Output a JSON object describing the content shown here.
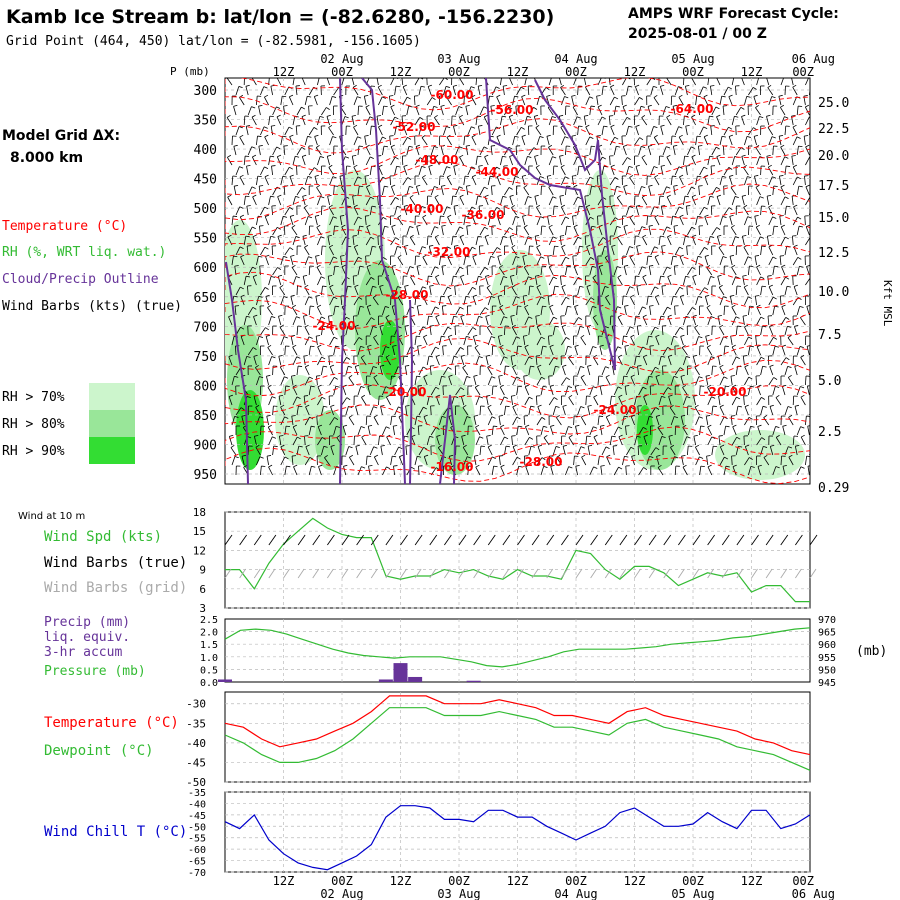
{
  "header": {
    "title": "Kamb Ice Stream b:  lat/lon = (-82.6280, -156.2230)",
    "subtitle": "Grid Point (464, 450) lat/lon = (-82.5981, -156.1605)",
    "cycle_label": "AMPS WRF Forecast Cycle:",
    "cycle_value": "2025-08-01 / 00  Z"
  },
  "legend": {
    "grid_title": "Model Grid ΔX:",
    "grid_value": "8.000 km",
    "temperature": "Temperature (°C)",
    "rh": "RH (%, WRT liq. wat.)",
    "cloud": "Cloud/Precip Outline",
    "barbs": "Wind Barbs (kts) (true)",
    "rh70": "RH > 70%",
    "rh80": "RH > 80%",
    "rh90": "RH > 90%"
  },
  "colors": {
    "temperature": "#ff0000",
    "rh": "#33bb33",
    "cloud": "#663399",
    "rh70": "#ccf5cc",
    "rh80": "#99e699",
    "rh90": "#33dd33",
    "wind_chill": "#0000cc",
    "grid_barbs": "#aaaaaa"
  },
  "time_axis": {
    "top_dates": [
      "02 Aug",
      "03 Aug",
      "04 Aug",
      "05 Aug",
      "06 Aug"
    ],
    "hour_labels": [
      "12Z",
      "00Z",
      "12Z",
      "00Z",
      "12Z",
      "00Z",
      "12Z",
      "00Z",
      "12Z",
      "00Z"
    ],
    "bottom_dates": [
      "02 Aug",
      "03 Aug",
      "04 Aug",
      "05 Aug",
      "06 Aug"
    ]
  },
  "chart_data": [
    {
      "type": "heatmap",
      "title": "Time-height cross section",
      "ylabel": "P (mb)",
      "ylabel_right": "Kft MSL",
      "pressure_levels": [
        300,
        350,
        400,
        450,
        500,
        550,
        600,
        650,
        700,
        750,
        800,
        850,
        900,
        950
      ],
      "height_levels": [
        "25.0",
        "22.5",
        "20.0",
        "17.5",
        "15.0",
        "12.5",
        "10.0",
        "7.5",
        "5.0",
        "2.5",
        "0.29"
      ],
      "temperature_labels": [
        "-60.00",
        "-56.00",
        "-64.00",
        "-52.00",
        "-48.00",
        "-44.00",
        "-40.00",
        "-36.00",
        "-32.00",
        "-28.00",
        "-24.00",
        "-20.00",
        "-24.00",
        "-20.00",
        "-16.00",
        "-28.00"
      ]
    },
    {
      "type": "line",
      "title": "Wind at 10 m",
      "series_labels": [
        "Wind Spd (kts)",
        "Wind Barbs (true)",
        "Wind Barbs (grid)"
      ],
      "yticks": [
        18,
        15,
        12,
        9,
        6,
        3
      ],
      "ylim": [
        3,
        18
      ],
      "x_hours": [
        0,
        3,
        6,
        9,
        12,
        15,
        18,
        21,
        24,
        27,
        30,
        33,
        36,
        39,
        42,
        45,
        48,
        51,
        54,
        57,
        60,
        63,
        66,
        69,
        72,
        75,
        78,
        81,
        84,
        87,
        90,
        93,
        96,
        99,
        102,
        105,
        108,
        111,
        114,
        117,
        120
      ],
      "wind_speed": [
        9,
        9,
        6,
        10,
        13,
        15,
        17,
        15.5,
        14.5,
        14,
        14,
        8,
        7.5,
        8,
        8,
        9,
        8.5,
        9,
        8,
        7.5,
        9,
        8,
        8,
        7.5,
        12,
        11.5,
        9,
        7.5,
        9.5,
        9.5,
        8.5,
        6.5,
        7.5,
        8.5,
        8,
        8.5,
        5.5,
        6.5,
        6.5,
        4,
        4
      ]
    },
    {
      "type": "line",
      "series_labels": [
        "Precip (mm)",
        "liq. equiv.",
        "3-hr accum",
        "Pressure (mb)"
      ],
      "ylabel_right": "(mb)",
      "yticks_left": [
        "2.5",
        "2.0",
        "1.5",
        "1.0",
        "0.5",
        "0.0"
      ],
      "yticks_right": [
        970,
        965,
        960,
        955,
        950,
        945
      ],
      "pressure": [
        962,
        965.5,
        966,
        965.5,
        964,
        962,
        960,
        958,
        956.5,
        955.5,
        955,
        954.5,
        955,
        955,
        955,
        954,
        953,
        951.5,
        951,
        952,
        953.5,
        955,
        957,
        958,
        958,
        958,
        958,
        958.5,
        959,
        960,
        960.5,
        961,
        961.5,
        962.5,
        963,
        964,
        965,
        966,
        966.5
      ],
      "precip": [
        0.1,
        0,
        0,
        0,
        0,
        0,
        0,
        0,
        0,
        0,
        0,
        0.1,
        0.75,
        0.2,
        0,
        0,
        0,
        0.05,
        0,
        0,
        0,
        0,
        0,
        0,
        0,
        0,
        0,
        0,
        0,
        0,
        0,
        0,
        0,
        0,
        0,
        0,
        0,
        0,
        0,
        0,
        0
      ]
    },
    {
      "type": "line",
      "series_labels": [
        "Temperature (°C)",
        "Dewpoint (°C)"
      ],
      "yticks": [
        -30,
        -35,
        -40,
        -45,
        -50
      ],
      "ylim": [
        -50,
        -27
      ],
      "temperature": [
        -35,
        -36,
        -39,
        -41,
        -40,
        -39,
        -37,
        -35,
        -32,
        -28,
        -28,
        -28,
        -30,
        -30,
        -30,
        -29,
        -30,
        -31,
        -33,
        -33,
        -34,
        -35,
        -32,
        -31,
        -33,
        -34,
        -35,
        -36,
        -37,
        -39,
        -40,
        -42,
        -43
      ],
      "dewpoint": [
        -38,
        -40,
        -43,
        -45,
        -45,
        -44,
        -42,
        -39,
        -35,
        -31,
        -31,
        -31,
        -33,
        -33,
        -33,
        -32,
        -33,
        -34,
        -36,
        -36,
        -37,
        -38,
        -35,
        -34,
        -36,
        -37,
        -38,
        -39,
        -41,
        -42,
        -43,
        -45,
        -47
      ]
    },
    {
      "type": "line",
      "series_labels": [
        "Wind Chill T (°C)"
      ],
      "yticks": [
        -35,
        -40,
        -45,
        -50,
        -55,
        -60,
        -65,
        -70
      ],
      "ylim": [
        -70,
        -35
      ],
      "x_hours": [
        0,
        3,
        6,
        9,
        12,
        15,
        18,
        21,
        24,
        27,
        30,
        33,
        36,
        39,
        42,
        45,
        48,
        51,
        54,
        57,
        60,
        63,
        66,
        69,
        72,
        75,
        78,
        81,
        84,
        87,
        90,
        93,
        96,
        99,
        102,
        105,
        108,
        111,
        114,
        117,
        120
      ],
      "wind_chill": [
        -48,
        -51,
        -45,
        -56,
        -62,
        -66,
        -68,
        -69,
        -66,
        -63,
        -58,
        -46,
        -41,
        -41,
        -42,
        -47,
        -47,
        -48,
        -43,
        -43,
        -46,
        -46,
        -50,
        -53,
        -56,
        -53,
        -50,
        -44,
        -42,
        -46,
        -50,
        -50,
        -49,
        -44,
        -48,
        -51,
        -43,
        -43,
        -51,
        -49,
        -45
      ]
    }
  ]
}
